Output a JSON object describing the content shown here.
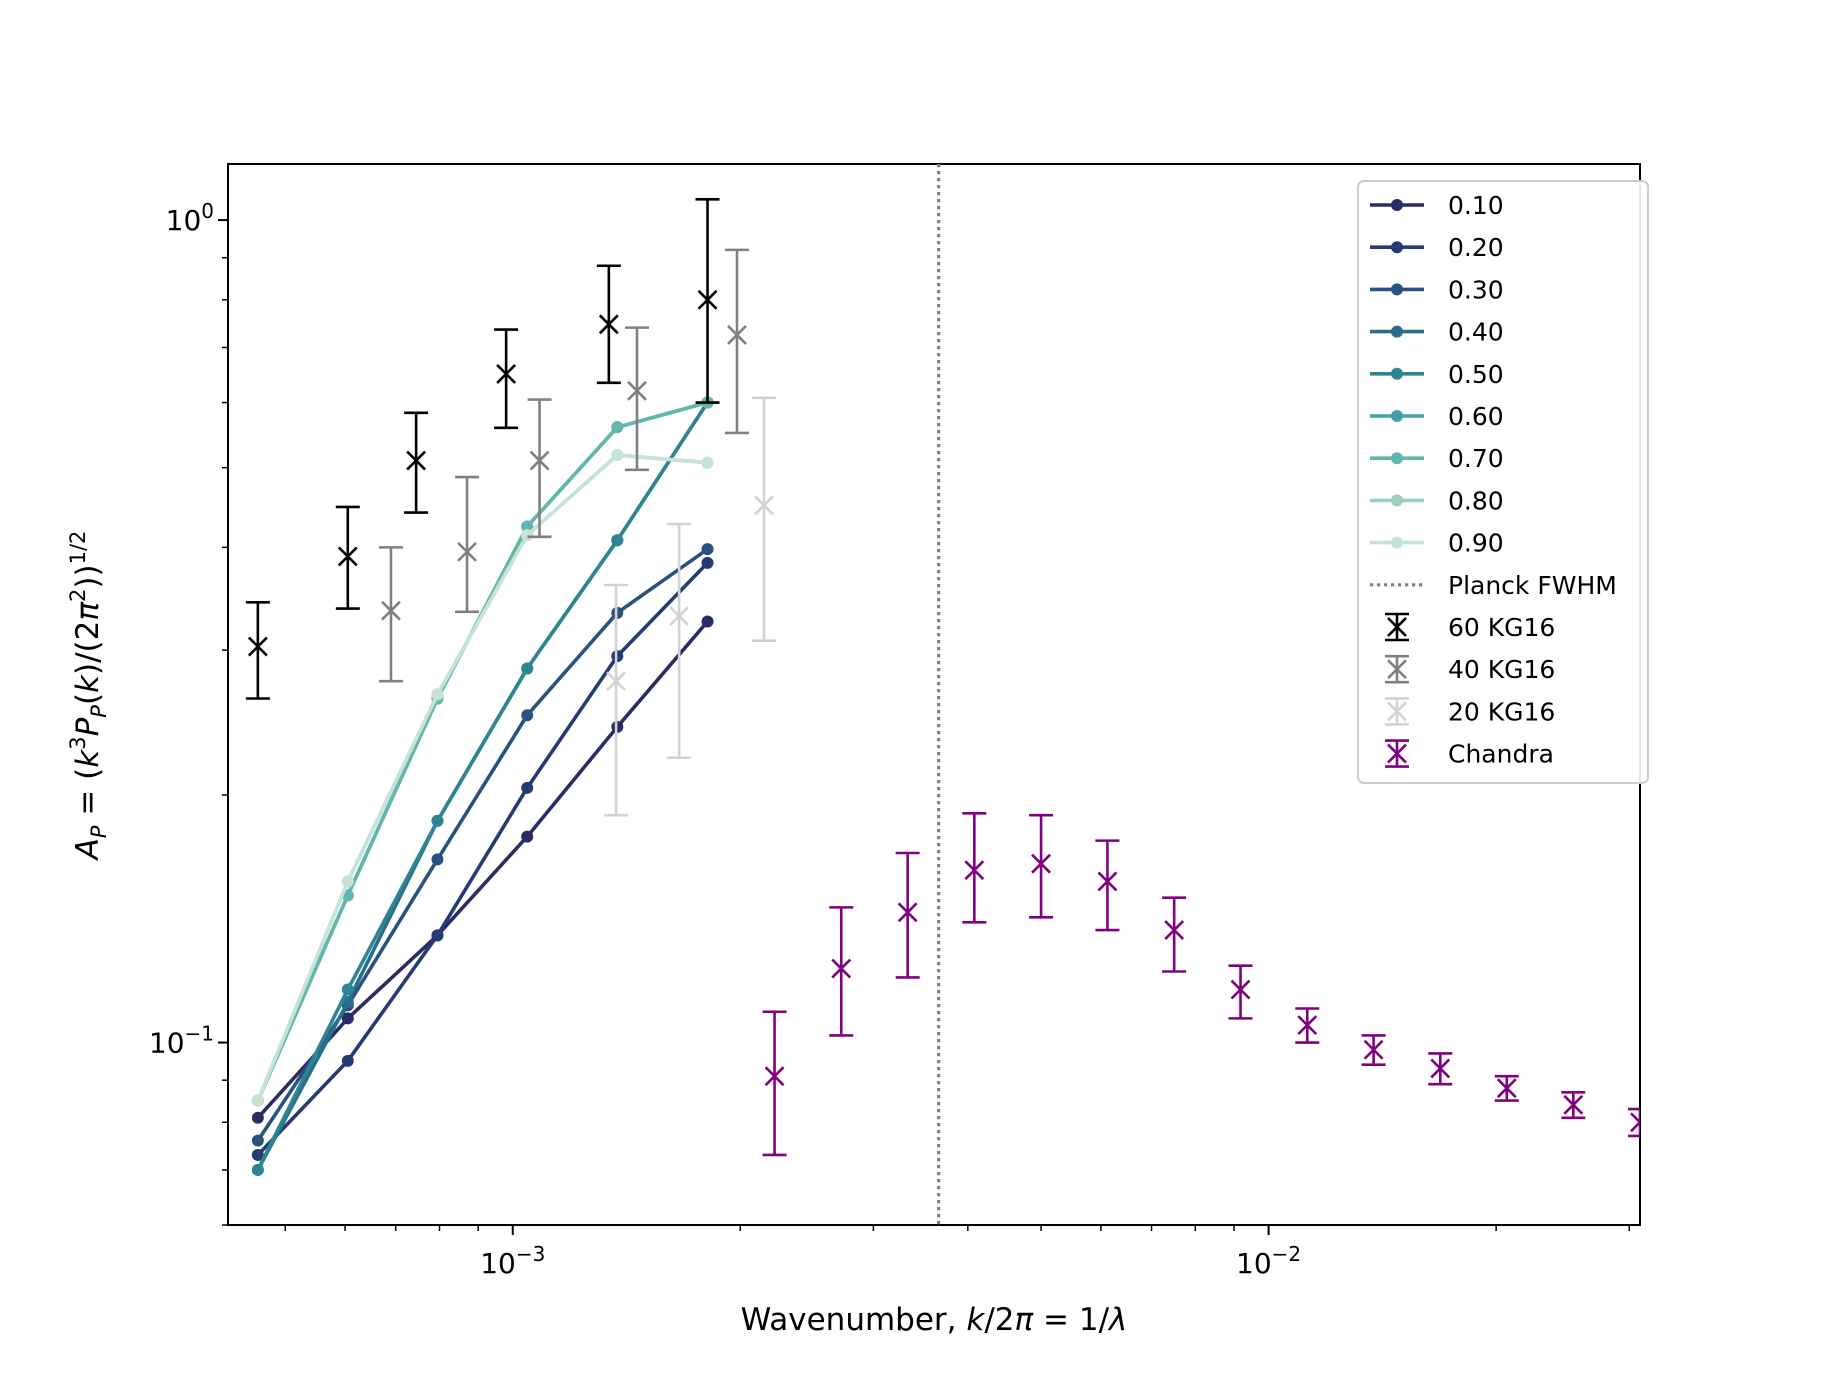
{
  "chart_data": {
    "type": "line",
    "xlabel": "Wavenumber, k/2π = 1/λ",
    "ylabel": "A_P = (k³P_P(k)/(2π²))^1/2",
    "xscale": "log",
    "yscale": "log",
    "xlim": [
      0.00042,
      0.031
    ],
    "ylim": [
      0.06,
      1.17
    ],
    "x_ticks": [
      {
        "value": 0.001,
        "base": "10",
        "exp": "−3"
      },
      {
        "value": 0.01,
        "base": "10",
        "exp": "−2"
      }
    ],
    "y_ticks": [
      {
        "value": 0.1,
        "base": "10",
        "exp": "−1"
      },
      {
        "value": 1.0,
        "base": "10",
        "exp": "0"
      }
    ],
    "legend_position": "upper right",
    "x_grid": [
      0.00046,
      0.000605,
      0.000795,
      0.001045,
      0.001375,
      0.00181
    ],
    "series": [
      {
        "name": "0.10",
        "color": "#2a2c65",
        "y": [
          0.081,
          0.107,
          0.135,
          0.178,
          0.242,
          0.325
        ]
      },
      {
        "name": "0.20",
        "color": "#263b73",
        "y": [
          0.073,
          0.095,
          0.135,
          0.204,
          0.295,
          0.383
        ]
      },
      {
        "name": "0.30",
        "color": "#26537f",
        "y": [
          0.076,
          0.111,
          0.167,
          0.25,
          0.333,
          0.398
        ]
      },
      {
        "name": "0.40",
        "color": "#296e8c",
        "y": [
          0.07,
          0.112,
          0.186,
          0.285,
          0.408,
          0.6
        ]
      },
      {
        "name": "0.50",
        "color": "#2f8494",
        "y": [
          0.07,
          0.116,
          0.186,
          0.285,
          0.408,
          0.6
        ]
      },
      {
        "name": "0.60",
        "color": "#45a2a2",
        "y": [
          0.085,
          0.151,
          0.262,
          0.424,
          0.56,
          0.6
        ]
      },
      {
        "name": "0.70",
        "color": "#62b7ac",
        "y": [
          0.085,
          0.151,
          0.262,
          0.424,
          0.56,
          0.6
        ]
      },
      {
        "name": "0.80",
        "color": "#9ccfbf",
        "y": [
          0.085,
          0.157,
          0.265,
          0.414,
          0.518,
          0.507
        ]
      },
      {
        "name": "0.90",
        "color": "#c7e2d6",
        "y": [
          0.085,
          0.157,
          0.265,
          0.414,
          0.518,
          0.507
        ]
      }
    ],
    "planck_fwhm": {
      "name": "Planck FWHM",
      "x": 0.00366,
      "color": "#808080"
    },
    "errorbar_series": [
      {
        "name": "60 KG16",
        "color": "#000000",
        "x": [
          0.00046,
          0.000605,
          0.000745,
          0.00098,
          0.00134,
          0.00181
        ],
        "y": [
          0.303,
          0.39,
          0.51,
          0.65,
          0.747,
          0.8
        ],
        "yerr_low": [
          0.262,
          0.337,
          0.441,
          0.559,
          0.634,
          0.6
        ],
        "yerr_high": [
          0.343,
          0.448,
          0.583,
          0.736,
          0.88,
          1.06
        ]
      },
      {
        "name": "40 KG16",
        "color": "#808080",
        "x": [
          0.00069,
          0.00087,
          0.001085,
          0.00146,
          0.00198
        ],
        "y": [
          0.335,
          0.395,
          0.51,
          0.62,
          0.725
        ],
        "yerr_low": [
          0.275,
          0.334,
          0.412,
          0.497,
          0.551
        ],
        "yerr_high": [
          0.4,
          0.487,
          0.605,
          0.74,
          0.92
        ]
      },
      {
        "name": "20 KG16",
        "color": "#d3d3d3",
        "x": [
          0.00137,
          0.00166,
          0.00215
        ],
        "y": [
          0.275,
          0.33,
          0.45
        ],
        "yerr_low": [
          0.189,
          0.222,
          0.308
        ],
        "yerr_high": [
          0.36,
          0.427,
          0.608
        ]
      },
      {
        "name": "Chandra",
        "color": "#800080",
        "x": [
          0.00222,
          0.00272,
          0.00333,
          0.00408,
          0.005,
          0.00612,
          0.0075,
          0.00918,
          0.01125,
          0.01377,
          0.01687,
          0.02066,
          0.0253,
          0.031
        ],
        "y": [
          0.091,
          0.123,
          0.144,
          0.162,
          0.165,
          0.157,
          0.137,
          0.116,
          0.105,
          0.098,
          0.093,
          0.088,
          0.084,
          0.08
        ],
        "yerr_low": [
          0.073,
          0.102,
          0.12,
          0.14,
          0.142,
          0.137,
          0.122,
          0.107,
          0.1,
          0.094,
          0.089,
          0.085,
          0.081,
          0.077
        ],
        "yerr_high": [
          0.109,
          0.146,
          0.17,
          0.19,
          0.189,
          0.176,
          0.15,
          0.124,
          0.11,
          0.102,
          0.097,
          0.091,
          0.087,
          0.083
        ]
      }
    ]
  }
}
